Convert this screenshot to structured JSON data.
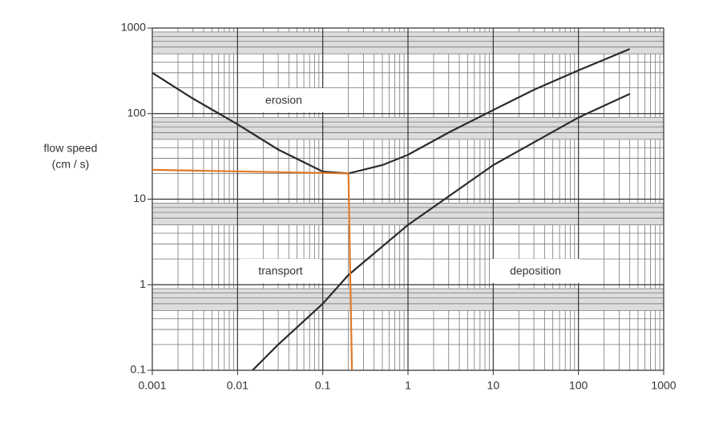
{
  "chart_data": {
    "type": "line",
    "ylabel": [
      "flow speed",
      "(cm / s)"
    ],
    "annotations": [
      "erosion",
      "transport",
      "deposition"
    ],
    "xscale": "log",
    "yscale": "log",
    "grid": true,
    "xlim": [
      0.001,
      1000
    ],
    "xticks": [
      0.001,
      0.01,
      0.1,
      1,
      10,
      100,
      1000
    ],
    "ylim": [
      0.1,
      1000
    ],
    "yticks": [
      0.1,
      1,
      10,
      100,
      1000
    ],
    "series": [
      {
        "color": "#2a2a2a",
        "x": [
          0.001,
          0.003,
          0.01,
          0.03,
          0.1,
          0.2,
          0.5,
          1,
          3,
          10,
          30,
          100,
          400
        ],
        "values": [
          300,
          150,
          75,
          38,
          21,
          20,
          25,
          33,
          60,
          110,
          190,
          320,
          570
        ]
      },
      {
        "color": "#2a2a2a",
        "x": [
          0.015,
          0.03,
          0.1,
          0.2,
          1,
          10,
          100,
          400
        ],
        "values": [
          0.1,
          0.2,
          0.6,
          1.3,
          5,
          25,
          90,
          170
        ]
      },
      {
        "color": "#e07b28",
        "x": [
          0.001,
          0.2,
          0.22
        ],
        "values": [
          22,
          20,
          0.1
        ]
      }
    ]
  }
}
